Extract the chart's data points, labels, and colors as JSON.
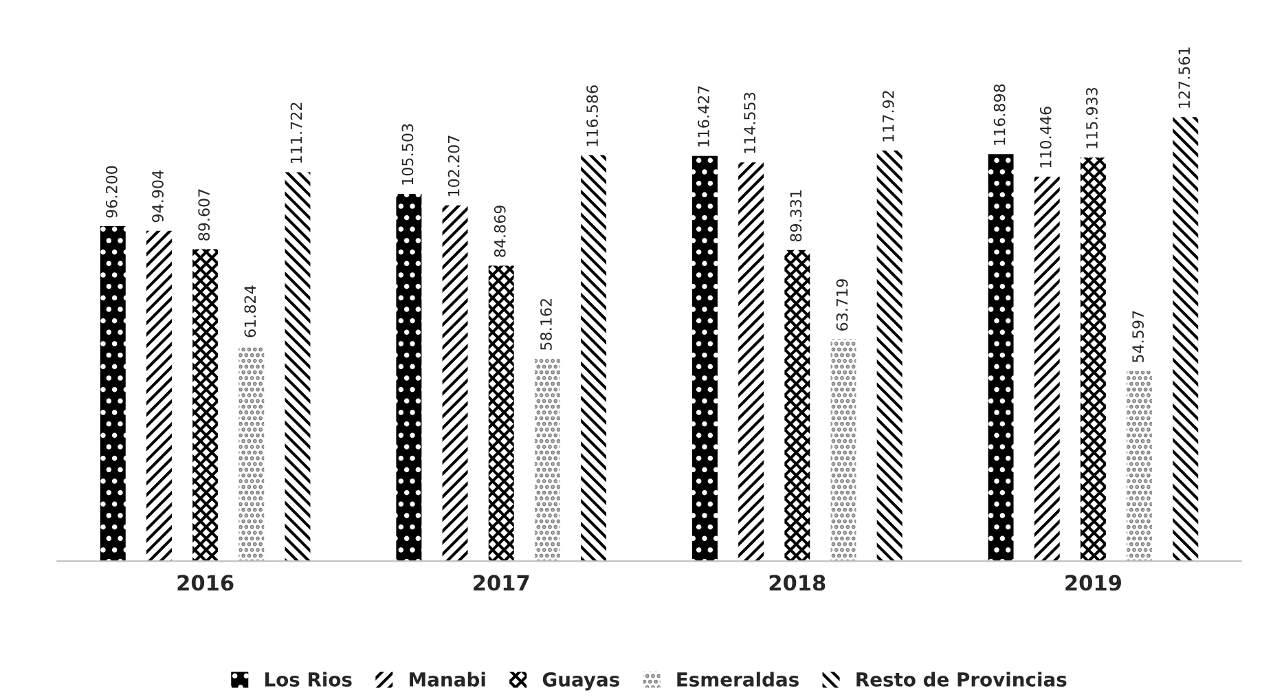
{
  "chart_data": {
    "type": "bar",
    "categories": [
      "2016",
      "2017",
      "2018",
      "2019"
    ],
    "series": [
      {
        "name": "Los Rios",
        "color": "#000000",
        "values": [
          96.2,
          105.503,
          116.427,
          116.898
        ],
        "value_labels": [
          "96.200",
          "105.503",
          "116.427",
          "116.898"
        ]
      },
      {
        "name": "Manabi",
        "color": "#000000",
        "values": [
          94.904,
          102.207,
          114.553,
          110.446
        ],
        "value_labels": [
          "94.904",
          "102.207",
          "114.553",
          "110.446"
        ]
      },
      {
        "name": "Guayas",
        "color": "#000000",
        "values": [
          89.607,
          84.869,
          89.331,
          115.933
        ],
        "value_labels": [
          "89.607",
          "84.869",
          "89.331",
          "115.933"
        ]
      },
      {
        "name": "Esmeraldas",
        "color": "#808080",
        "values": [
          61.824,
          58.162,
          63.719,
          54.597
        ],
        "value_labels": [
          "61.824",
          "58.162",
          "63.719",
          "54.597"
        ]
      },
      {
        "name": "Resto de Provincias",
        "color": "#000000",
        "values": [
          111.722,
          116.586,
          117.92,
          127.561
        ],
        "value_labels": [
          "111.722",
          "116.586",
          "117.92",
          "127.561"
        ]
      }
    ],
    "grid": false,
    "legend": "bottom",
    "tick_labels": "x"
  }
}
